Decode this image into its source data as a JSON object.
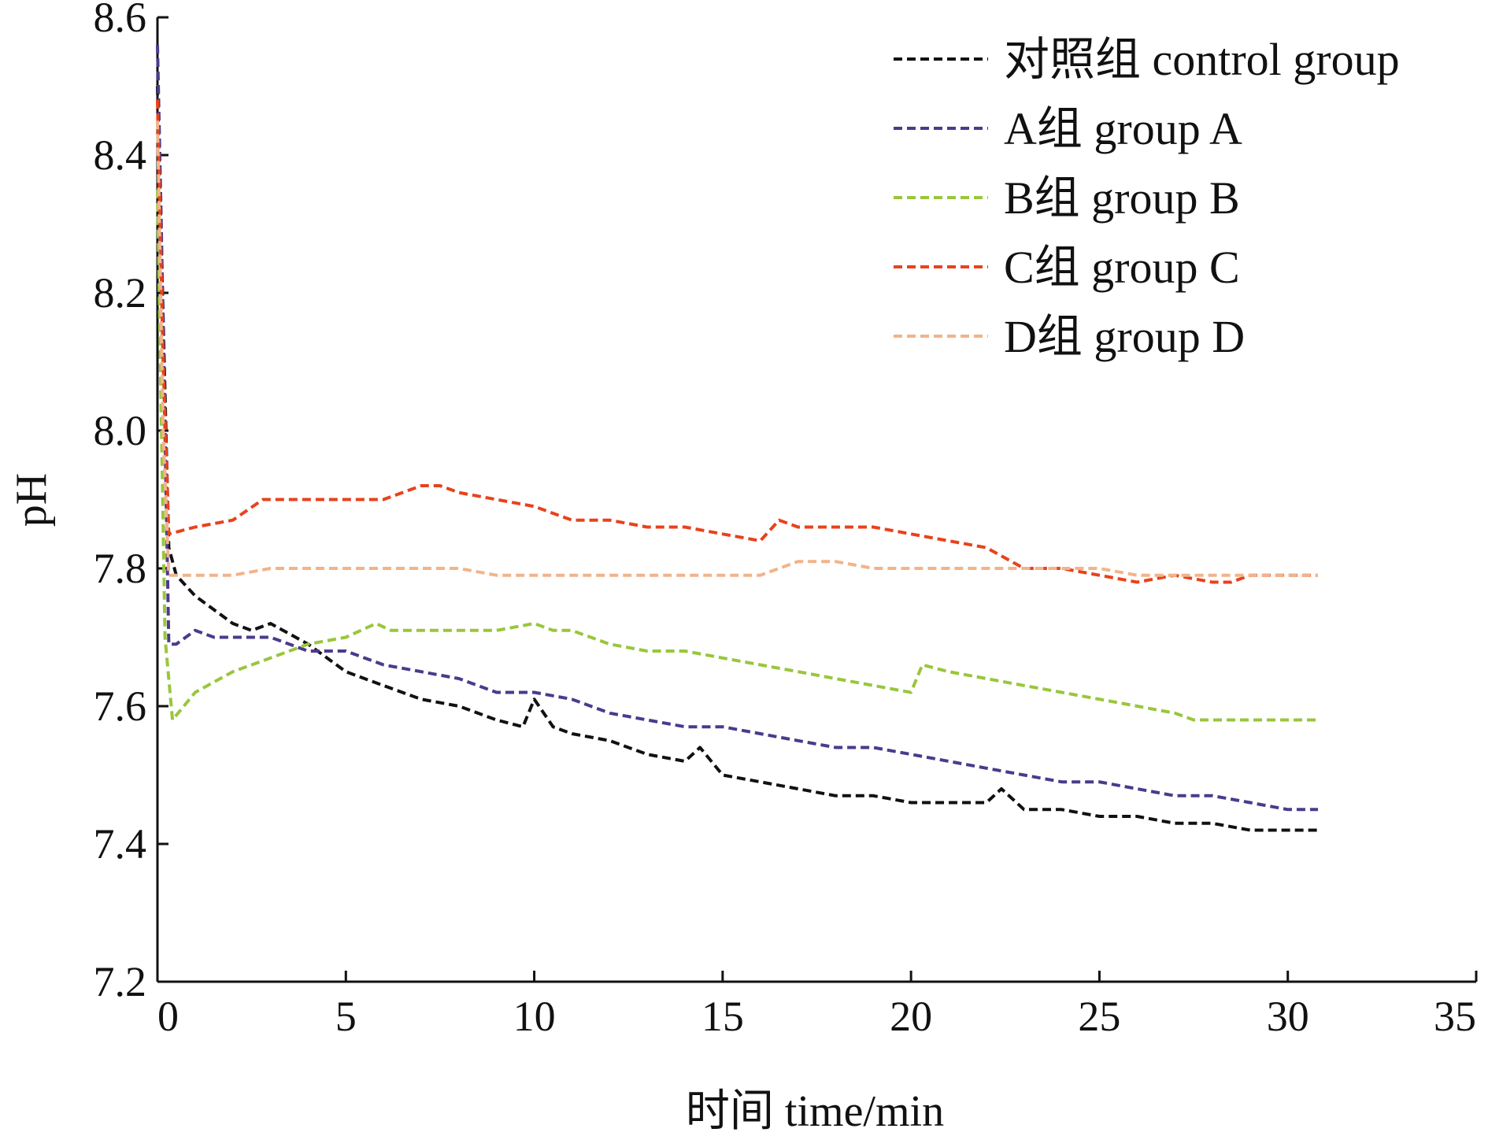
{
  "chart_data": {
    "type": "line",
    "xlabel": "时间 time/min",
    "ylabel": "pH",
    "xlim": [
      0,
      35
    ],
    "ylim": [
      7.2,
      8.6
    ],
    "xticks": [
      0,
      5,
      10,
      15,
      20,
      25,
      30,
      35
    ],
    "yticks": [
      7.2,
      7.4,
      7.6,
      7.8,
      8.0,
      8.2,
      8.4,
      8.6
    ],
    "xtick_labels": [
      "0",
      "5",
      "10",
      "15",
      "20",
      "25",
      "30",
      "35"
    ],
    "ytick_labels": [
      "7.2",
      "7.4",
      "7.6",
      "7.8",
      "8.0",
      "8.2",
      "8.4",
      "8.6"
    ],
    "grid": false,
    "legend_position": "top-right",
    "line_style": "dashed",
    "series": [
      {
        "name": "对照组 control group",
        "color": "#111111",
        "x": [
          0,
          0.3,
          0.5,
          1,
          1.5,
          2,
          2.5,
          3,
          4,
          5,
          6,
          7,
          8,
          9,
          9.7,
          10,
          10.5,
          11,
          12,
          13,
          14,
          14.4,
          15,
          16,
          17,
          18,
          19,
          20,
          21,
          22,
          22.4,
          23,
          24,
          25,
          26,
          27,
          28,
          29,
          30,
          30.8
        ],
        "y": [
          8.5,
          7.83,
          7.79,
          7.76,
          7.74,
          7.72,
          7.71,
          7.72,
          7.69,
          7.65,
          7.63,
          7.61,
          7.6,
          7.58,
          7.57,
          7.61,
          7.57,
          7.56,
          7.55,
          7.53,
          7.52,
          7.54,
          7.5,
          7.49,
          7.48,
          7.47,
          7.47,
          7.46,
          7.46,
          7.46,
          7.48,
          7.45,
          7.45,
          7.44,
          7.44,
          7.43,
          7.43,
          7.42,
          7.42,
          7.42
        ]
      },
      {
        "name": "A组 group A",
        "color": "#4b3a8c",
        "x": [
          0,
          0.1,
          0.3,
          0.5,
          1,
          1.5,
          2,
          3,
          4,
          5,
          6,
          7,
          8,
          9,
          10,
          11,
          12,
          13,
          14,
          15,
          16,
          17,
          18,
          19,
          20,
          21,
          22,
          23,
          24,
          25,
          26,
          27,
          28,
          29,
          30,
          30.8
        ],
        "y": [
          8.56,
          8.3,
          7.69,
          7.69,
          7.71,
          7.7,
          7.7,
          7.7,
          7.68,
          7.68,
          7.66,
          7.65,
          7.64,
          7.62,
          7.62,
          7.61,
          7.59,
          7.58,
          7.57,
          7.57,
          7.56,
          7.55,
          7.54,
          7.54,
          7.53,
          7.52,
          7.51,
          7.5,
          7.49,
          7.49,
          7.48,
          7.47,
          7.47,
          7.46,
          7.45,
          7.45
        ]
      },
      {
        "name": "B组 group B",
        "color": "#99c63c",
        "x": [
          0,
          0.2,
          0.4,
          1,
          2,
          3,
          4,
          5,
          5.8,
          6.2,
          7,
          8,
          9,
          10,
          10.5,
          11,
          12,
          13,
          14,
          15,
          16,
          17,
          18,
          19,
          20,
          20.3,
          21,
          22,
          23,
          24,
          25,
          26,
          27,
          27.5,
          28,
          29,
          30,
          30.8
        ],
        "y": [
          8.35,
          7.7,
          7.58,
          7.62,
          7.65,
          7.67,
          7.69,
          7.7,
          7.72,
          7.71,
          7.71,
          7.71,
          7.71,
          7.72,
          7.71,
          7.71,
          7.69,
          7.68,
          7.68,
          7.67,
          7.66,
          7.65,
          7.64,
          7.63,
          7.62,
          7.66,
          7.65,
          7.64,
          7.63,
          7.62,
          7.61,
          7.6,
          7.59,
          7.58,
          7.58,
          7.58,
          7.58,
          7.58
        ]
      },
      {
        "name": "C组 group C",
        "color": "#e8421c",
        "x": [
          0,
          0.15,
          0.3,
          1,
          2,
          2.8,
          4,
          5,
          6,
          7,
          7.5,
          8,
          9,
          10,
          11,
          12,
          13,
          14,
          15,
          16,
          16.5,
          17,
          18,
          19,
          20,
          21,
          22,
          23,
          24,
          25,
          26,
          27,
          28,
          28.5,
          29,
          30,
          30.8
        ],
        "y": [
          8.48,
          8.1,
          7.85,
          7.86,
          7.87,
          7.9,
          7.9,
          7.9,
          7.9,
          7.92,
          7.92,
          7.91,
          7.9,
          7.89,
          7.87,
          7.87,
          7.86,
          7.86,
          7.85,
          7.84,
          7.87,
          7.86,
          7.86,
          7.86,
          7.85,
          7.84,
          7.83,
          7.8,
          7.8,
          7.79,
          7.78,
          7.79,
          7.78,
          7.78,
          7.79,
          7.79,
          7.79
        ]
      },
      {
        "name": "D组 group D",
        "color": "#f2b38a",
        "x": [
          0,
          0.15,
          0.3,
          1,
          2,
          3,
          4,
          5,
          6,
          7,
          8,
          9,
          10,
          11,
          12,
          13,
          14,
          15,
          16,
          17,
          18,
          19,
          20,
          21,
          22,
          23,
          24,
          25,
          26,
          27,
          28,
          29,
          30,
          30.8
        ],
        "y": [
          8.45,
          8.0,
          7.79,
          7.79,
          7.79,
          7.8,
          7.8,
          7.8,
          7.8,
          7.8,
          7.8,
          7.79,
          7.79,
          7.79,
          7.79,
          7.79,
          7.79,
          7.79,
          7.79,
          7.81,
          7.81,
          7.8,
          7.8,
          7.8,
          7.8,
          7.8,
          7.8,
          7.8,
          7.79,
          7.79,
          7.79,
          7.79,
          7.79,
          7.79
        ]
      }
    ]
  }
}
